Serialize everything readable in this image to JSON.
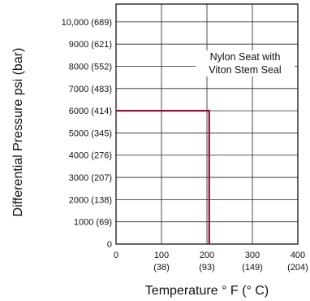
{
  "chart_data": {
    "type": "line",
    "title": "",
    "xlabel": "Temperature ° F (° C)",
    "ylabel": "Differential Pressure psi (bar)",
    "xlim": [
      0,
      400
    ],
    "ylim": [
      0,
      10800
    ],
    "grid": true,
    "x_ticks": [
      {
        "value": 0,
        "label": "0",
        "sublabel": ""
      },
      {
        "value": 100,
        "label": "100",
        "sublabel": "(38)"
      },
      {
        "value": 200,
        "label": "200",
        "sublabel": "(93)"
      },
      {
        "value": 300,
        "label": "300",
        "sublabel": "(149)"
      },
      {
        "value": 400,
        "label": "400",
        "sublabel": "(204)"
      }
    ],
    "y_ticks": [
      {
        "value": 0,
        "label": "0"
      },
      {
        "value": 1000,
        "label": "1000  (69)"
      },
      {
        "value": 2000,
        "label": "2000  (138)"
      },
      {
        "value": 3000,
        "label": "3000  (207)"
      },
      {
        "value": 4000,
        "label": "4000  (276)"
      },
      {
        "value": 5000,
        "label": "5000  (345)"
      },
      {
        "value": 6000,
        "label": "6000  (414)"
      },
      {
        "value": 7000,
        "label": "7000  (483)"
      },
      {
        "value": 8000,
        "label": "8000  (552)"
      },
      {
        "value": 9000,
        "label": "9000  (621)"
      },
      {
        "value": 10000,
        "label": "10,000  (689)"
      }
    ],
    "series": [
      {
        "color": "#8b1538",
        "points": [
          [
            0,
            6000
          ],
          [
            205,
            6000
          ],
          [
            205,
            0
          ]
        ]
      }
    ],
    "annotation": {
      "lines": [
        "Nylon Seat with",
        "Viton Stem Seal"
      ]
    }
  }
}
